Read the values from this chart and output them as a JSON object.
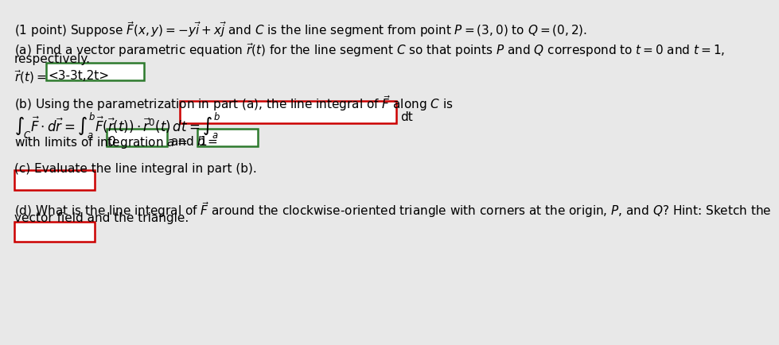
{
  "bg_color": "#e8e8e8",
  "content_bg": "#f0f0f0",
  "title_line": "(1 point) Suppose $\\vec{F}(x, y) = -y\\vec{i} + x\\vec{j}$ and $C$ is the line segment from point $P = (3, 0)$ to $Q = (0, 2)$.",
  "part_a_line1": "(a) Find a vector parametric equation $\\vec{r}(t)$ for the line segment $C$ so that points $P$ and $Q$ correspond to $t = 0$ and $t = 1$,",
  "part_a_line2": "respectively.",
  "part_a_answer_label": "$\\vec{r}(t) = $",
  "part_a_answer": "<3-3t,2t>",
  "part_b_line": "(b) Using the parametrization in part (a), the line integral of $\\vec{F}$ along $C$ is",
  "part_b_integral": "$\\int_C \\vec{F} \\cdot d\\vec{r} = \\int_a^b \\vec{F}(\\vec{r}(t)) \\cdot \\vec{r}^{\\prime}(t)\\, dt = \\int_a^b$",
  "part_b_dt": "dt",
  "part_b_limits1": "with limits of integration $a = $",
  "part_b_a_val": "0",
  "part_b_limits2": "and $b = $",
  "part_b_b_val": "1",
  "part_c_line": "(c) Evaluate the line integral in part (b).",
  "part_d_line1": "(d) What is the line integral of $\\vec{F}$ around the clockwise-oriented triangle with corners at the origin, $P$, and $Q$? Hint: Sketch the",
  "part_d_line2": "vector field and the triangle.",
  "font_size": 11,
  "green_box_color": "#2d7a2d",
  "red_box_color": "#cc0000",
  "box_fill": "#ffffff"
}
